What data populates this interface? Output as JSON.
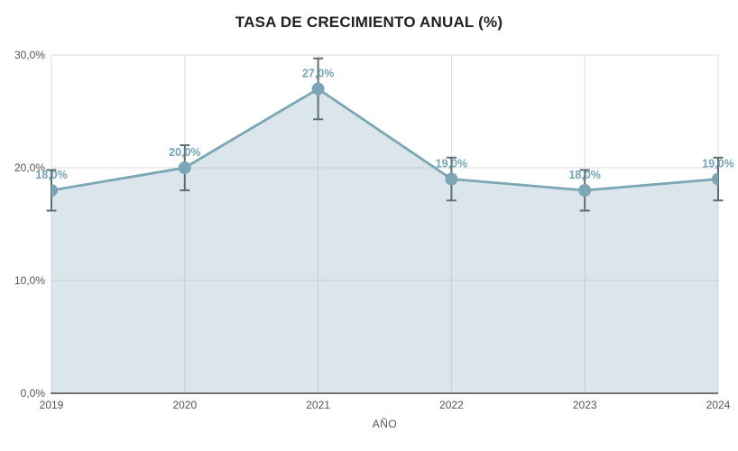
{
  "chart_data": {
    "type": "area",
    "title": "TASA DE CRECIMIENTO ANUAL (%)",
    "xlabel": "AÑO",
    "ylabel": "",
    "categories": [
      "2019",
      "2020",
      "2021",
      "2022",
      "2023",
      "2024"
    ],
    "values": [
      18.0,
      20.0,
      27.0,
      19.0,
      18.0,
      19.0
    ],
    "point_labels": [
      "18,0%",
      "20,0%",
      "27,0%",
      "19,0%",
      "18,0%",
      "19,0%"
    ],
    "error_bars": [
      1.8,
      2.0,
      2.7,
      1.9,
      1.8,
      1.9
    ],
    "ylim": [
      0,
      30
    ],
    "ytick_values": [
      0,
      10,
      20,
      30
    ],
    "ytick_labels": [
      "0,0%",
      "10,0%",
      "20,0%",
      "30,0%"
    ],
    "grid": true,
    "legend": false,
    "colors": {
      "line": "#7ba6b6",
      "marker": "#7ba6b6",
      "fill": "rgba(123,166,182,0.28)",
      "point_label": "#74a4b6",
      "error_bar": "#5d6e76",
      "gridline": "#dddddd",
      "axis_line": "#757575",
      "tick_text": "#555555",
      "title_text": "#212121"
    }
  }
}
